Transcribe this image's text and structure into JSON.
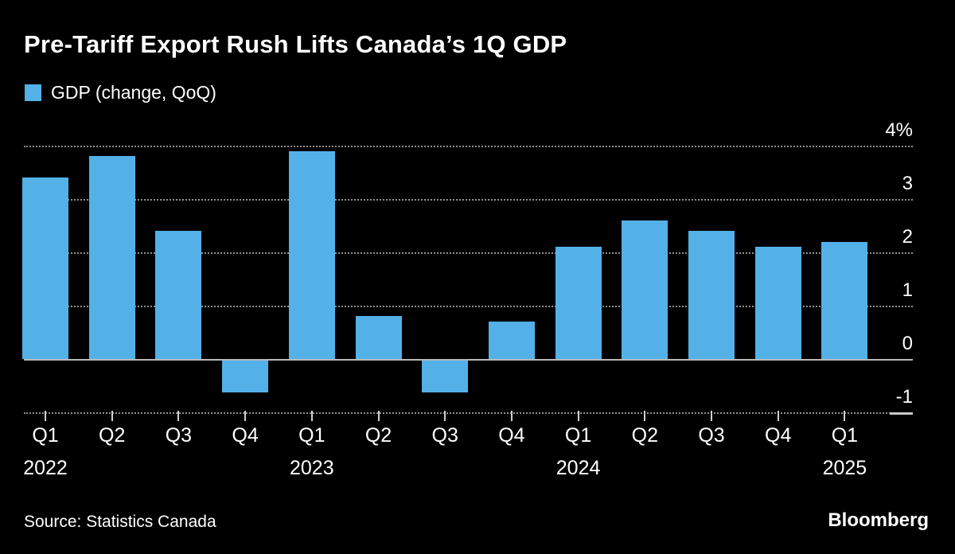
{
  "header": {
    "title": "Pre-Tariff Export Rush Lifts Canada’s 1Q GDP"
  },
  "legend": {
    "label": "GDP (change, QoQ)",
    "swatch_color": "#53b1e8"
  },
  "chart_data": {
    "type": "bar",
    "title": "Pre-Tariff Export Rush Lifts Canada’s 1Q GDP",
    "series_name": "GDP (change, QoQ)",
    "categories": [
      "Q1 2022",
      "Q2 2022",
      "Q3 2022",
      "Q4 2022",
      "Q1 2023",
      "Q2 2023",
      "Q3 2023",
      "Q4 2023",
      "Q1 2024",
      "Q2 2024",
      "Q3 2024",
      "Q4 2024",
      "Q1 2025"
    ],
    "values": [
      3.4,
      3.8,
      2.4,
      -0.6,
      3.9,
      0.8,
      -0.6,
      0.7,
      2.1,
      2.6,
      2.4,
      2.1,
      2.2
    ],
    "x_tick_labels": [
      "Q1",
      "Q2",
      "Q3",
      "Q4",
      "Q1",
      "Q2",
      "Q3",
      "Q4",
      "Q1",
      "Q2",
      "Q3",
      "Q4",
      "Q1"
    ],
    "x_year_labels": [
      {
        "index": 0,
        "label": "2022"
      },
      {
        "index": 4,
        "label": "2023"
      },
      {
        "index": 8,
        "label": "2024"
      },
      {
        "index": 12,
        "label": "2025"
      }
    ],
    "y_ticks": [
      4,
      3,
      2,
      1,
      0,
      -1
    ],
    "y_tick_labels": [
      "4%",
      "3",
      "2",
      "1",
      "0",
      "-1"
    ],
    "ylim": [
      -1.5,
      4.5
    ],
    "yaxis_side": "right",
    "grid": "dotted-horizontal",
    "bar_color": "#53b1e8",
    "background_color": "#000000"
  },
  "footer": {
    "source": "Source: Statistics Canada",
    "brand": "Bloomberg"
  }
}
